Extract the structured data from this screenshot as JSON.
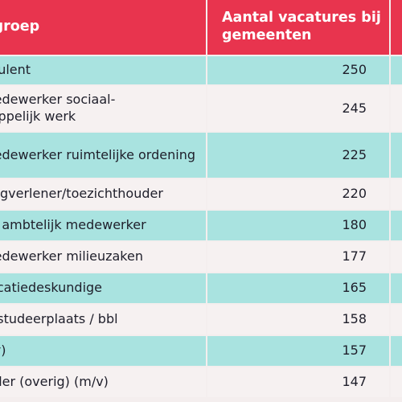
{
  "table": {
    "headers": {
      "function_group": "Functiegroep",
      "vacancies": "Aantal vacatures bij gemeenten",
      "extra": ""
    },
    "rows": [
      {
        "function": "Klantconsulent",
        "count": "250",
        "extra": ""
      },
      {
        "function": "Beleidsmedewerker sociaal-maatschappelijk werk",
        "count": "245",
        "extra": ""
      },
      {
        "function": "Beleidsmedewerker ruimtelijke ordening",
        "count": "225",
        "extra": ""
      },
      {
        "function": "Vergunningverlener/toezichthouder",
        "count": "220",
        "extra": ""
      },
      {
        "function": "Juridisch / ambtelijk medewerker",
        "count": "180",
        "extra": ""
      },
      {
        "function": "Beleidsmedewerker milieuzaken",
        "count": "177",
        "extra": ""
      },
      {
        "function": "Communicatiedeskundige",
        "count": "165",
        "extra": ""
      },
      {
        "function": "Stage / afstudeerplaats / bbl",
        "count": "158",
        "extra": ""
      },
      {
        "function": "Jurist (m/v)",
        "count": "157",
        "extra": ""
      },
      {
        "function": "Projectleider (overig) (m/v)",
        "count": "147",
        "extra": ""
      }
    ]
  }
}
